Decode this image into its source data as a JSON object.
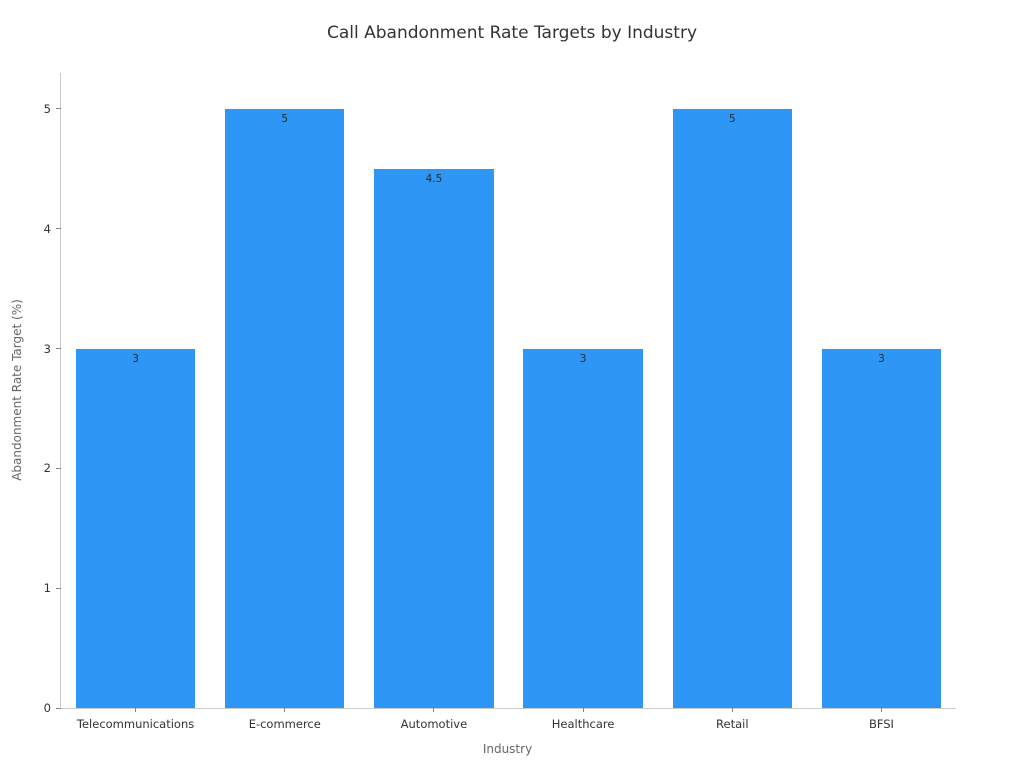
{
  "chart_data": {
    "type": "bar",
    "title": "Call Abandonment Rate Targets by Industry",
    "xlabel": "Industry",
    "ylabel": "Abandonment Rate Target (%)",
    "categories": [
      "Telecommunications",
      "E-commerce",
      "Automotive",
      "Healthcare",
      "Retail",
      "BFSI"
    ],
    "values": [
      3,
      5,
      4.5,
      3,
      5,
      3
    ],
    "bar_labels": [
      "3",
      "5",
      "4.5",
      "3",
      "5",
      "3"
    ],
    "yticks": [
      0,
      1,
      2,
      3,
      4,
      5
    ],
    "ylim": [
      0,
      5.3
    ],
    "bar_color": "#2E96F5",
    "grid": false,
    "legend": "none",
    "background_color": "#ffffff"
  }
}
